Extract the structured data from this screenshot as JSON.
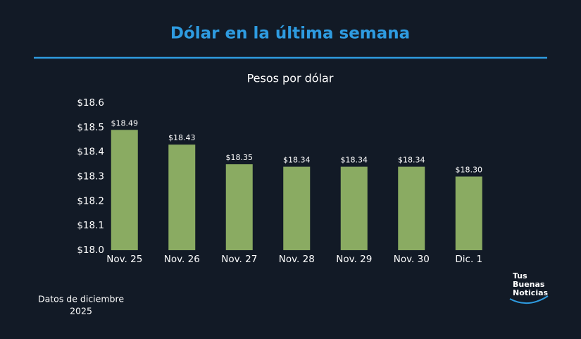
{
  "chart_data": {
    "type": "bar",
    "title": "Dólar en la última semana",
    "subtitle": "Pesos por dólar",
    "categories": [
      "Nov. 25",
      "Nov. 26",
      "Nov. 27",
      "Nov. 28",
      "Nov. 29",
      "Nov. 30",
      "Dic. 1"
    ],
    "values": [
      18.49,
      18.43,
      18.35,
      18.34,
      18.34,
      18.34,
      18.3
    ],
    "value_labels": [
      "$18.49",
      "$18.43",
      "$18.35",
      "$18.34",
      "$18.34",
      "$18.34",
      "$18.30"
    ],
    "color": "#8aab62",
    "ylim": [
      18.0,
      18.6
    ],
    "yticks": [
      {
        "value": 18.0,
        "label": "$18.0"
      },
      {
        "value": 18.1,
        "label": "$18.1"
      },
      {
        "value": 18.2,
        "label": "$18.2"
      },
      {
        "value": 18.3,
        "label": "$18.3"
      },
      {
        "value": 18.4,
        "label": "$18.4"
      },
      {
        "value": 18.5,
        "label": "$18.5"
      },
      {
        "value": 18.6,
        "label": "$18.6"
      }
    ],
    "grid": false,
    "footnote": [
      "Datos de diciembre",
      "2025"
    ],
    "logo": [
      "Tus",
      "Buenas",
      "Noticias"
    ]
  }
}
